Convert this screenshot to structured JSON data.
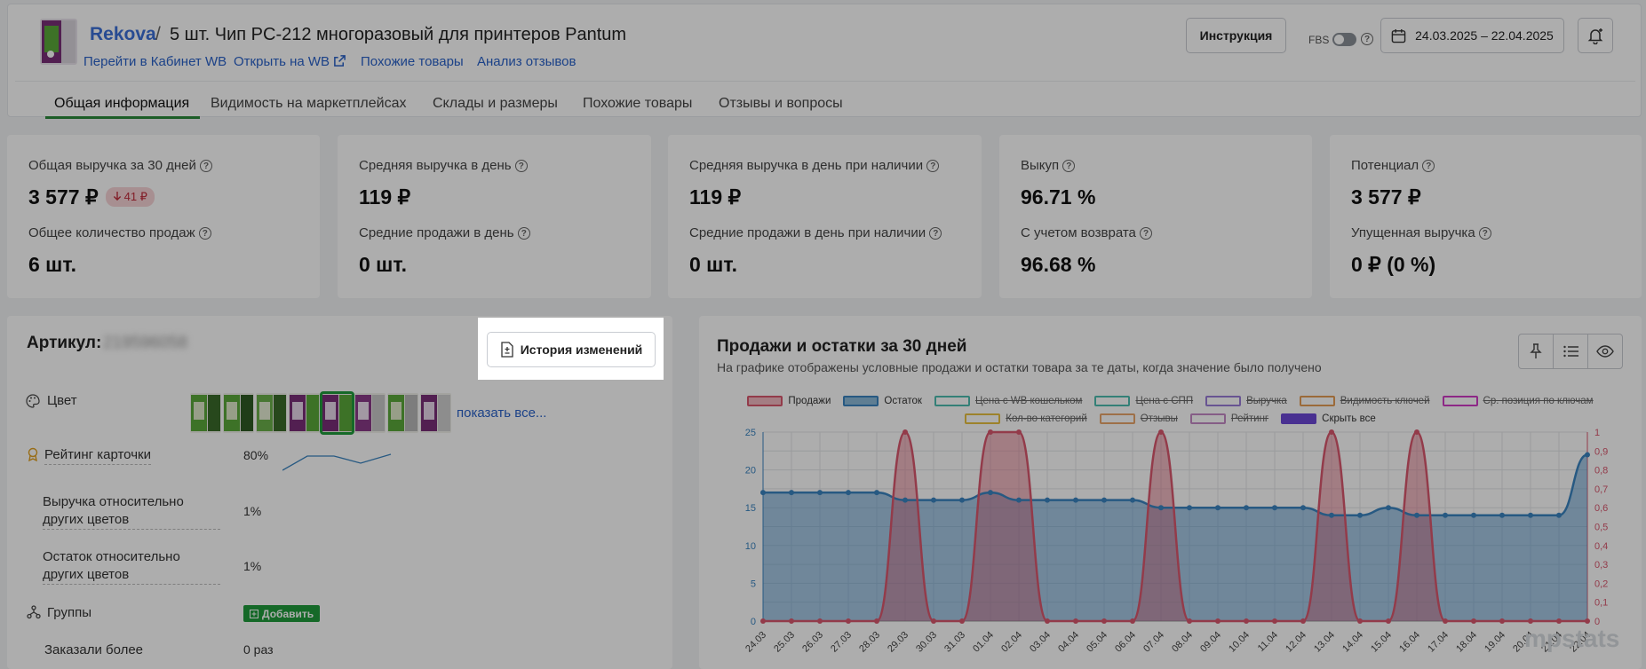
{
  "header": {
    "brand": "Rekova",
    "separator": "/",
    "title": "5 шт. Чип PC-212 многоразовый для принтеров Pantum",
    "links": [
      "Перейти в Кабинет WB",
      "Открыть на WB",
      "Похожие товары",
      "Анализ отзывов"
    ],
    "instruction_btn": "Инструкция",
    "fbs_label": "FBS",
    "date_range": "24.03.2025 – 22.04.2025",
    "tabs": [
      "Общая информация",
      "Видимость на маркетплейсах",
      "Склады и размеры",
      "Похожие товары",
      "Отзывы и вопросы"
    ],
    "active_tab": "Общая информация"
  },
  "stats": [
    {
      "l1": "Общая выручка за 30 дней",
      "v1": "3 577 ₽",
      "delta": "41 ₽",
      "l2": "Общее количество продаж",
      "v2": "6 шт."
    },
    {
      "l1": "Средняя выручка в день",
      "v1": "119 ₽",
      "l2": "Средние продажи в день",
      "v2": "0 шт."
    },
    {
      "l1": "Средняя выручка в день при наличии",
      "v1": "119 ₽",
      "l2": "Средние продажи в день при наличии",
      "v2": "0 шт."
    },
    {
      "l1": "Выкуп",
      "v1": "96.71 %",
      "l2": "С учетом возврата",
      "v2": "96.68 %"
    },
    {
      "l1": "Потенциал",
      "v1": "3 577 ₽",
      "l2": "Упущенная выручка",
      "v2": "0 ₽ (0 %)"
    }
  ],
  "article": {
    "title": "Артикул:",
    "article_number": "219596058",
    "history_btn": "История изменений",
    "color_label": "Цвет",
    "show_all": "показать все...",
    "rating_label": "Рейтинг карточки",
    "rating_value": "80%",
    "revenue_other_label": "Выручка относительно других цветов",
    "revenue_other_value": "1%",
    "stock_other_label": "Остаток относительно других цветов",
    "stock_other_value": "1%",
    "groups_label": "Группы",
    "add_btn": "Добавить",
    "ordered_label": "Заказали более",
    "ordered_value": "0 раз",
    "swatch_count": 8,
    "selected_swatch": 5
  },
  "chart_panel": {
    "title": "Продажи и остатки за 30 дней",
    "subtitle": "На графике отображены условные продажи и остатки товара за те даты, когда значение было получено",
    "legend_row1": [
      {
        "name": "Продажи",
        "color": "#d9576e",
        "fill": "#f2b9c2",
        "on": true
      },
      {
        "name": "Остаток",
        "color": "#3a84c0",
        "fill": "#8cbad9",
        "on": true
      },
      {
        "name": "Цена с WB кошельком",
        "color": "#4dbdb0",
        "fill": "#ffffff",
        "on": false
      },
      {
        "name": "Цена с СПП",
        "color": "#4dbdb0",
        "fill": "#ffffff",
        "on": false
      },
      {
        "name": "Выручка",
        "color": "#9a7cd8",
        "fill": "#ffffff",
        "on": false
      },
      {
        "name": "Видимость ключей",
        "color": "#e59c55",
        "fill": "#ffffff",
        "on": false
      },
      {
        "name": "Ср. позиция по ключам",
        "color": "#d03cc6",
        "fill": "#ffffff",
        "on": false
      }
    ],
    "legend_row2": [
      {
        "name": "Кол-во категорий",
        "color": "#e8c040",
        "fill": "#ffffff",
        "on": false
      },
      {
        "name": "Отзывы",
        "color": "#e9a56a",
        "fill": "#ffffff",
        "on": false
      },
      {
        "name": "Рейтинг",
        "color": "#c48ac6",
        "fill": "#ffffff",
        "on": false
      },
      {
        "name": "Скрыть все",
        "color": "#6c47d6",
        "fill": "#6c47d6",
        "on": true
      }
    ],
    "watermark": "mpstats"
  },
  "chart_data": {
    "type": "area",
    "x": [
      "24.03",
      "25.03",
      "26.03",
      "27.03",
      "28.03",
      "29.03",
      "30.03",
      "31.03",
      "01.04",
      "02.04",
      "03.04",
      "04.04",
      "05.04",
      "06.04",
      "07.04",
      "08.04",
      "09.04",
      "10.04",
      "11.04",
      "12.04",
      "13.04",
      "14.04",
      "15.04",
      "16.04",
      "17.04",
      "18.04",
      "19.04",
      "20.04",
      "21.04",
      "22.04"
    ],
    "series": [
      {
        "name": "Остаток",
        "axis": "left",
        "values": [
          17,
          17,
          17,
          17,
          17,
          16,
          16,
          16,
          17,
          16,
          16,
          16,
          16,
          16,
          15,
          15,
          15,
          15,
          15,
          15,
          14,
          14,
          15,
          14,
          14,
          14,
          14,
          14,
          14,
          22
        ]
      },
      {
        "name": "Продажи",
        "axis": "right",
        "values": [
          0,
          0,
          0,
          0,
          0,
          1,
          0,
          0,
          1,
          1,
          0,
          0,
          0,
          0,
          1,
          0,
          0,
          0,
          0,
          0,
          1,
          0,
          0,
          1,
          0,
          0,
          0,
          0,
          0,
          0
        ]
      }
    ],
    "y_left_ticks": [
      "0",
      "5",
      "10",
      "15",
      "20",
      "25"
    ],
    "y_right_ticks": [
      "0",
      "0,1",
      "0,2",
      "0,3",
      "0,4",
      "0,5",
      "0,6",
      "0,7",
      "0,8",
      "0,9",
      "1"
    ],
    "ylim_left": [
      0,
      25
    ],
    "ylim_right": [
      0,
      1
    ],
    "grid": true,
    "legend": "top"
  }
}
